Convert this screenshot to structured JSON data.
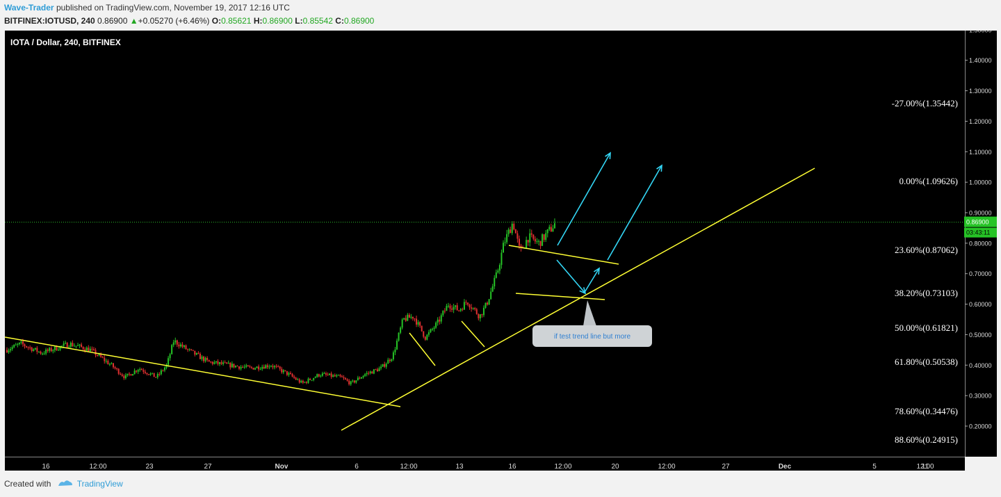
{
  "header": {
    "author": "Wave-Trader",
    "published_text": "published on TradingView.com, November 19, 2017 12:16 UTC",
    "symbol": "BITFINEX:IOTUSD, 240",
    "price": "0.86900",
    "change": "+0.05270 (+6.46%)",
    "open_label": "O:",
    "open": "0.85621",
    "high_label": "H:",
    "high": "0.86900",
    "low_label": "L:",
    "low": "0.85542",
    "close_label": "C:",
    "close": "0.86900"
  },
  "chart_data": {
    "type": "candlestick",
    "title": "IOTA / Dollar, 240, BITFINEX",
    "ylim": [
      0.2,
      1.6
    ],
    "y_ticks": [
      "0.20000",
      "0.30000",
      "0.40000",
      "0.50000",
      "0.60000",
      "0.70000",
      "0.80000",
      "0.90000",
      "1.00000",
      "1.10000",
      "1.20000",
      "1.30000",
      "1.40000",
      "1.50000"
    ],
    "x_ticks": [
      "16",
      "12:00",
      "23",
      "27",
      "Nov",
      "6",
      "12:00",
      "13",
      "16",
      "12:00",
      "20",
      "12:00",
      "27",
      "Dec",
      "5",
      "11",
      "12:00"
    ],
    "current_price_label": "0.86900",
    "countdown_label": "03:43:11",
    "fib_levels": [
      {
        "label": "-27.00%(1.35442)",
        "value": 1.35442
      },
      {
        "label": "0.00%(1.09626)",
        "value": 1.09626
      },
      {
        "label": "23.60%(0.87062)",
        "value": 0.87062
      },
      {
        "label": "38.20%(0.73103)",
        "value": 0.73103
      },
      {
        "label": "50.00%(0.61821)",
        "value": 0.61821
      },
      {
        "label": "61.80%(0.50538)",
        "value": 0.50538
      },
      {
        "label": "78.60%(0.34476)",
        "value": 0.34476
      },
      {
        "label": "88.60%(0.24915)",
        "value": 0.24915
      }
    ],
    "annotation": "if test trend line but more",
    "up_color": "#26c426",
    "down_color": "#e03030",
    "trendline_color": "#ffff33",
    "arrow_color": "#33d6f5"
  },
  "footer": {
    "created_with": "Created with",
    "brand": "TradingView"
  }
}
